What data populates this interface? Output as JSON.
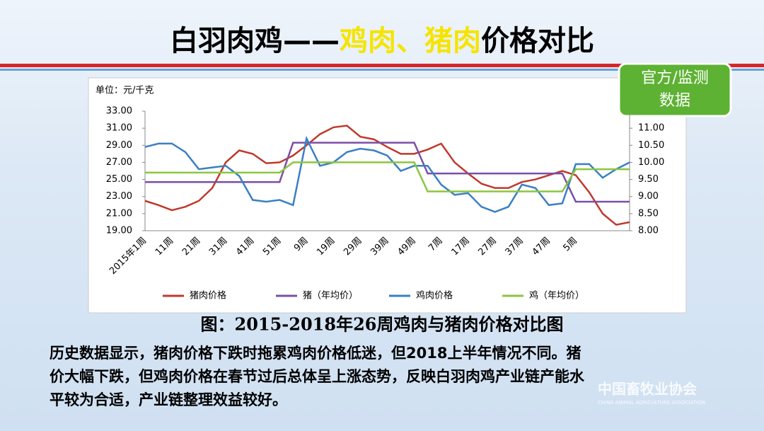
{
  "slide": {
    "title_parts": [
      {
        "text": "白羽肉鸡——",
        "color": "#000000"
      },
      {
        "text": "鸡肉、猪肉",
        "color": "#f5e400"
      },
      {
        "text": "价格对比",
        "color": "#000000"
      }
    ],
    "badge_lines": [
      "官方/监测",
      "数据"
    ],
    "caption": "图：2015-2018年26周鸡肉与猪肉价格对比图",
    "body_lines": [
      "历史数据显示，猪肉价格下跌时拖累鸡肉价格低迷，但2018上半年情况不同。猪",
      "价大幅下跌，但鸡肉价格在春节过后总体呈上涨态势，反映白羽肉鸡产业链产能水",
      "平较为合适，产业链整理效益较好。"
    ],
    "logo_cn": "中国畜牧业协会",
    "logo_en": "CHINA ANIMAL AGRICULTURE ASSOCIATION"
  },
  "chart_data": {
    "type": "line",
    "ylabel": "单位：元/千克",
    "categories": [
      "2015年1周",
      null,
      "11周",
      null,
      "21周",
      null,
      "31周",
      null,
      "41周",
      null,
      "51周",
      null,
      "9周",
      null,
      "19周",
      null,
      "29周",
      null,
      "39周",
      null,
      "49周",
      null,
      "7周",
      null,
      "17周",
      null,
      "27周",
      null,
      "37周",
      null,
      "47周",
      null,
      "5周",
      null,
      null,
      null,
      null
    ],
    "ylim": [
      19,
      33
    ],
    "yticks": [
      {
        "value": 19,
        "label": "19.00"
      },
      {
        "value": 21,
        "label": "21.00"
      },
      {
        "value": 23,
        "label": "23.00"
      },
      {
        "value": 25,
        "label": "25.00"
      },
      {
        "value": 27,
        "label": "27.00"
      },
      {
        "value": 29,
        "label": "29.00"
      },
      {
        "value": 31,
        "label": "31.00"
      },
      {
        "value": 33,
        "label": "33.00"
      }
    ],
    "y2lim": [
      8,
      11.5
    ],
    "y2ticks": [
      {
        "value": 8,
        "label": "8.00"
      },
      {
        "value": 8.5,
        "label": "8.50"
      },
      {
        "value": 9,
        "label": "9.00"
      },
      {
        "value": 9.5,
        "label": "9.50"
      },
      {
        "value": 10,
        "label": "10.00"
      },
      {
        "value": 10.5,
        "label": "10.50"
      },
      {
        "value": 11,
        "label": "11.00"
      }
    ],
    "series": [
      {
        "name": "猪肉价格",
        "color": "#c0392b",
        "values": [
          22.5,
          22,
          21.4,
          21.8,
          22.5,
          24,
          27,
          28.4,
          28,
          26.9,
          27,
          27.8,
          29,
          30.3,
          31.1,
          31.3,
          30,
          29.7,
          28.8,
          28,
          28,
          28.5,
          29.2,
          27,
          25.7,
          24.5,
          24,
          24,
          24.7,
          25,
          25.5,
          26,
          25.5,
          23.5,
          21,
          19.7,
          20
        ]
      },
      {
        "name": "猪（年均价）",
        "color": "#7b4fa6",
        "values": [
          24.7,
          24.7,
          24.7,
          24.7,
          24.7,
          24.7,
          24.7,
          24.7,
          24.7,
          24.7,
          24.7,
          29.3,
          29.3,
          29.3,
          29.3,
          29.3,
          29.3,
          29.3,
          29.3,
          29.3,
          29.3,
          25.7,
          25.7,
          25.7,
          25.7,
          25.7,
          25.7,
          25.7,
          25.7,
          25.7,
          25.7,
          25.7,
          22.4,
          22.4,
          22.4,
          22.4,
          22.4
        ]
      },
      {
        "name": "鸡肉价格",
        "color": "#3b7fc4",
        "axis": "y2",
        "values": [
          10.45,
          10.55,
          10.55,
          10.3,
          9.8,
          9.85,
          9.9,
          9.6,
          8.9,
          8.85,
          8.9,
          8.75,
          10.7,
          9.9,
          10,
          10.3,
          10.4,
          10.35,
          10.2,
          9.75,
          9.9,
          9.9,
          9.35,
          9.05,
          9.1,
          8.7,
          8.55,
          8.7,
          9.35,
          9.25,
          8.75,
          8.8,
          9.95,
          9.95,
          9.55,
          9.8,
          10
        ]
      },
      {
        "name": "鸡（年均价）",
        "color": "#8cc63f",
        "axis": "y2",
        "values": [
          9.7,
          9.7,
          9.7,
          9.7,
          9.7,
          9.7,
          9.7,
          9.7,
          9.7,
          9.7,
          9.7,
          10,
          10,
          10,
          10,
          10,
          10,
          10,
          10,
          10,
          10,
          9.15,
          9.15,
          9.15,
          9.15,
          9.15,
          9.15,
          9.15,
          9.15,
          9.15,
          9.15,
          9.15,
          9.8,
          9.8,
          9.8,
          9.8,
          9.8
        ]
      }
    ]
  }
}
